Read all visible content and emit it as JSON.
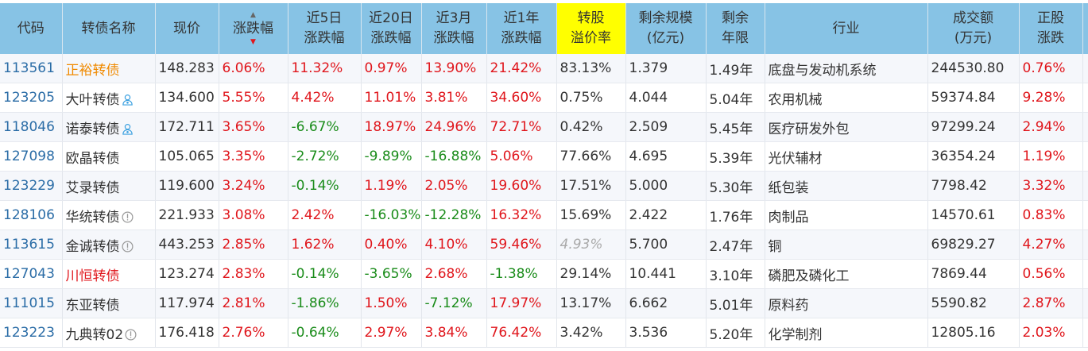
{
  "columns": [
    "代码",
    "转债名称",
    "现价",
    "涨跌幅",
    "近5日\n涨跌幅",
    "近20日\n涨跌幅",
    "近3月\n涨跌幅",
    "近1年\n涨跌幅",
    "转股\n溢价率",
    "剩余规模\n(亿元)",
    "剩余\n年限",
    "行业",
    "成交额\n(万元)",
    "正股\n涨跌"
  ],
  "sort": {
    "column": "涨跌幅",
    "direction": "desc"
  },
  "colors": {
    "header": "#87c3e5",
    "highlight_header": "#ffff00",
    "up": "#e0161c",
    "down": "#1a8c1a",
    "code": "#2a6ca6"
  },
  "rows": [
    {
      "code": "113561",
      "name": "正裕转债",
      "name_style": "orange",
      "icon": "",
      "price": "148.283",
      "chg": "6.06%",
      "d5": "11.32%",
      "d20": "0.97%",
      "m3": "13.90%",
      "y1": "21.42%",
      "premium": "83.13%",
      "premium_style": "",
      "size": "1.379",
      "years": "1.49年",
      "industry": "底盘与发动机系统",
      "amount": "244530.80",
      "stock_chg": "0.76%"
    },
    {
      "code": "123205",
      "name": "大叶转债",
      "name_style": "",
      "icon": "person",
      "price": "134.600",
      "chg": "5.55%",
      "d5": "4.42%",
      "d20": "11.01%",
      "m3": "3.81%",
      "y1": "34.60%",
      "premium": "0.75%",
      "premium_style": "",
      "size": "4.044",
      "years": "5.04年",
      "industry": "农用机械",
      "amount": "59374.84",
      "stock_chg": "9.28%"
    },
    {
      "code": "118046",
      "name": "诺泰转债",
      "name_style": "",
      "icon": "person",
      "price": "172.711",
      "chg": "3.65%",
      "d5": "-6.67%",
      "d20": "18.97%",
      "m3": "24.96%",
      "y1": "72.71%",
      "premium": "0.42%",
      "premium_style": "",
      "size": "2.509",
      "years": "5.45年",
      "industry": "医疗研发外包",
      "amount": "97299.24",
      "stock_chg": "2.94%"
    },
    {
      "code": "127098",
      "name": "欧晶转债",
      "name_style": "",
      "icon": "",
      "price": "105.065",
      "chg": "3.35%",
      "d5": "-2.72%",
      "d20": "-9.89%",
      "m3": "-16.88%",
      "y1": "5.06%",
      "premium": "77.66%",
      "premium_style": "",
      "size": "4.695",
      "years": "5.39年",
      "industry": "光伏辅材",
      "amount": "36354.24",
      "stock_chg": "1.19%"
    },
    {
      "code": "123229",
      "name": "艾录转债",
      "name_style": "",
      "icon": "",
      "price": "119.600",
      "chg": "3.24%",
      "d5": "-0.14%",
      "d20": "1.19%",
      "m3": "2.05%",
      "y1": "19.60%",
      "premium": "17.51%",
      "premium_style": "",
      "size": "5.000",
      "years": "5.30年",
      "industry": "纸包装",
      "amount": "7798.42",
      "stock_chg": "3.32%"
    },
    {
      "code": "128106",
      "name": "华统转债",
      "name_style": "",
      "icon": "info",
      "price": "221.933",
      "chg": "3.08%",
      "d5": "2.42%",
      "d20": "-16.03%",
      "m3": "-12.28%",
      "y1": "16.32%",
      "premium": "15.69%",
      "premium_style": "",
      "size": "2.422",
      "years": "1.76年",
      "industry": "肉制品",
      "amount": "14570.61",
      "stock_chg": "0.83%"
    },
    {
      "code": "113615",
      "name": "金诚转债",
      "name_style": "",
      "icon": "info",
      "price": "443.253",
      "chg": "2.85%",
      "d5": "1.62%",
      "d20": "0.40%",
      "m3": "4.10%",
      "y1": "59.46%",
      "premium": "4.93%",
      "premium_style": "grey",
      "size": "5.700",
      "years": "2.47年",
      "industry": "铜",
      "amount": "69829.27",
      "stock_chg": "4.27%"
    },
    {
      "code": "127043",
      "name": "川恒转债",
      "name_style": "redname",
      "icon": "",
      "price": "123.274",
      "chg": "2.83%",
      "d5": "-0.14%",
      "d20": "-3.65%",
      "m3": "2.68%",
      "y1": "-1.38%",
      "premium": "29.14%",
      "premium_style": "",
      "size": "10.441",
      "years": "3.10年",
      "industry": "磷肥及磷化工",
      "amount": "7869.44",
      "stock_chg": "0.56%"
    },
    {
      "code": "111015",
      "name": "东亚转债",
      "name_style": "",
      "icon": "",
      "price": "117.974",
      "chg": "2.81%",
      "d5": "-1.86%",
      "d20": "1.50%",
      "m3": "-7.12%",
      "y1": "17.97%",
      "premium": "13.17%",
      "premium_style": "",
      "size": "6.662",
      "years": "5.01年",
      "industry": "原料药",
      "amount": "5590.82",
      "stock_chg": "2.87%"
    },
    {
      "code": "123223",
      "name": "九典转02",
      "name_style": "",
      "icon": "info",
      "price": "176.418",
      "chg": "2.76%",
      "d5": "-0.64%",
      "d20": "2.97%",
      "m3": "3.84%",
      "y1": "76.42%",
      "premium": "3.42%",
      "premium_style": "",
      "size": "3.536",
      "years": "5.20年",
      "industry": "化学制剂",
      "amount": "12805.16",
      "stock_chg": "2.03%"
    }
  ]
}
